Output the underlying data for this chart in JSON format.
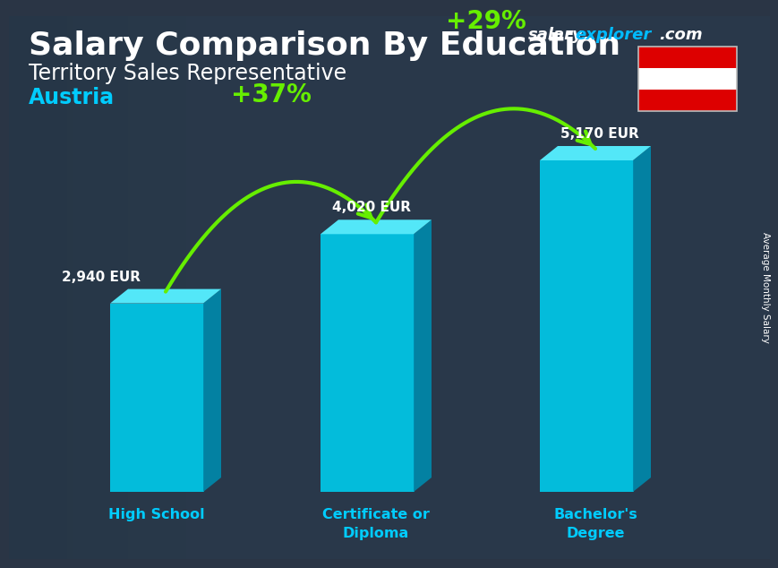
{
  "title_main": "Salary Comparison By Education",
  "title_sub": "Territory Sales Representative",
  "title_country": "Austria",
  "ylabel": "Average Monthly Salary",
  "categories": [
    "High School",
    "Certificate or\nDiploma",
    "Bachelor's\nDegree"
  ],
  "values": [
    2940,
    4020,
    5170
  ],
  "labels": [
    "2,940 EUR",
    "4,020 EUR",
    "5,170 EUR"
  ],
  "bar_front_color": "#00c8e8",
  "bar_top_color": "#55eeff",
  "bar_side_color": "#0088aa",
  "arrow_color": "#66ee00",
  "pct_labels": [
    "+37%",
    "+29%"
  ],
  "bg_dark": "#2a3545",
  "text_white": "#ffffff",
  "text_cyan": "#00ccff",
  "flag_red": "#dd0000",
  "flag_white": "#ffffff",
  "watermark_salary": "salary",
  "watermark_explorer": "explorer",
  "watermark_com": ".com"
}
